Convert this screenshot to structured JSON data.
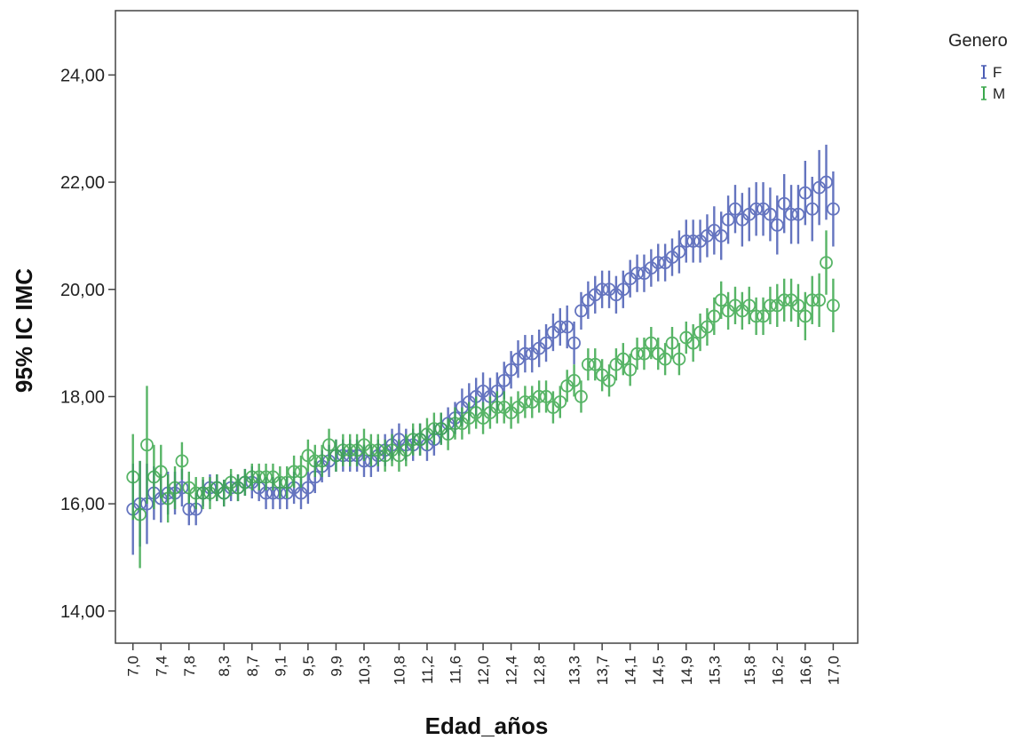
{
  "chart_data": {
    "type": "scatter",
    "subtype": "error-bar",
    "title": "",
    "xlabel": "Edad_años",
    "ylabel": "95% IC IMC",
    "ylim": [
      13.4,
      25.2
    ],
    "yticks": [
      "14,00",
      "16,00",
      "18,00",
      "20,00",
      "22,00",
      "24,00"
    ],
    "ytick_values": [
      14,
      16,
      18,
      20,
      22,
      24
    ],
    "xlim": [
      6.75,
      17.35
    ],
    "xticks": [
      "7,0",
      "7,4",
      "7,8",
      "8,3",
      "8,7",
      "9,1",
      "9,5",
      "9,9",
      "10,3",
      "10,8",
      "11,2",
      "11,6",
      "12,0",
      "12,4",
      "12,8",
      "13,3",
      "13,7",
      "14,1",
      "14,5",
      "14,9",
      "15,3",
      "15,8",
      "16,2",
      "16,6",
      "17,0"
    ],
    "xtick_values": [
      7.0,
      7.4,
      7.8,
      8.3,
      8.7,
      9.1,
      9.5,
      9.9,
      10.3,
      10.8,
      11.2,
      11.6,
      12.0,
      12.4,
      12.8,
      13.3,
      13.7,
      14.1,
      14.5,
      14.9,
      15.3,
      15.8,
      16.2,
      16.6,
      17.0
    ],
    "legend": {
      "title": "Genero",
      "position": "top-right outside"
    },
    "grid": false,
    "series": [
      {
        "name": "F",
        "color": "#4a5cb4",
        "x": [
          7.0,
          7.1,
          7.2,
          7.3,
          7.4,
          7.5,
          7.6,
          7.7,
          7.8,
          7.9,
          8.0,
          8.1,
          8.2,
          8.3,
          8.4,
          8.5,
          8.6,
          8.7,
          8.8,
          8.9,
          9.0,
          9.1,
          9.2,
          9.3,
          9.4,
          9.5,
          9.6,
          9.7,
          9.8,
          9.9,
          10.0,
          10.1,
          10.2,
          10.3,
          10.4,
          10.5,
          10.6,
          10.7,
          10.8,
          10.9,
          11.0,
          11.1,
          11.2,
          11.3,
          11.4,
          11.5,
          11.6,
          11.7,
          11.8,
          11.9,
          12.0,
          12.1,
          12.2,
          12.3,
          12.4,
          12.5,
          12.6,
          12.7,
          12.8,
          12.9,
          13.0,
          13.1,
          13.2,
          13.3,
          13.4,
          13.5,
          13.6,
          13.7,
          13.8,
          13.9,
          14.0,
          14.1,
          14.2,
          14.3,
          14.4,
          14.5,
          14.6,
          14.7,
          14.8,
          14.9,
          15.0,
          15.1,
          15.2,
          15.3,
          15.4,
          15.5,
          15.6,
          15.7,
          15.8,
          15.9,
          16.0,
          16.1,
          16.2,
          16.3,
          16.4,
          16.5,
          16.6,
          16.7,
          16.8,
          16.9,
          17.0
        ],
        "y": [
          15.9,
          16.0,
          16.0,
          16.2,
          16.1,
          16.2,
          16.2,
          16.3,
          15.9,
          15.9,
          16.2,
          16.3,
          16.3,
          16.2,
          16.3,
          16.3,
          16.4,
          16.4,
          16.3,
          16.2,
          16.2,
          16.2,
          16.2,
          16.3,
          16.2,
          16.3,
          16.5,
          16.7,
          16.8,
          16.9,
          16.9,
          16.9,
          16.9,
          16.8,
          16.8,
          16.9,
          17.0,
          17.1,
          17.2,
          17.1,
          17.1,
          17.2,
          17.1,
          17.2,
          17.4,
          17.5,
          17.6,
          17.8,
          17.9,
          18.0,
          18.1,
          18.0,
          18.1,
          18.3,
          18.5,
          18.7,
          18.8,
          18.8,
          18.9,
          19.0,
          19.2,
          19.3,
          19.3,
          19.0,
          19.6,
          19.8,
          19.9,
          20.0,
          20.0,
          19.9,
          20.0,
          20.2,
          20.3,
          20.3,
          20.4,
          20.5,
          20.5,
          20.6,
          20.7,
          20.9,
          20.9,
          20.9,
          21.0,
          21.1,
          21.0,
          21.3,
          21.5,
          21.3,
          21.4,
          21.5,
          21.5,
          21.4,
          21.2,
          21.6,
          21.4,
          21.4,
          21.8,
          21.5,
          21.9,
          22.0,
          21.5
        ],
        "ci": [
          0.85,
          0.8,
          0.75,
          0.5,
          0.45,
          0.4,
          0.4,
          0.35,
          0.3,
          0.3,
          0.25,
          0.25,
          0.25,
          0.25,
          0.25,
          0.25,
          0.25,
          0.3,
          0.25,
          0.3,
          0.3,
          0.3,
          0.3,
          0.3,
          0.3,
          0.3,
          0.3,
          0.3,
          0.3,
          0.3,
          0.3,
          0.3,
          0.3,
          0.3,
          0.3,
          0.3,
          0.3,
          0.3,
          0.3,
          0.3,
          0.3,
          0.3,
          0.3,
          0.3,
          0.3,
          0.3,
          0.3,
          0.35,
          0.35,
          0.35,
          0.35,
          0.35,
          0.35,
          0.35,
          0.35,
          0.35,
          0.35,
          0.35,
          0.35,
          0.35,
          0.35,
          0.35,
          0.4,
          0.4,
          0.35,
          0.35,
          0.35,
          0.35,
          0.35,
          0.35,
          0.35,
          0.35,
          0.35,
          0.35,
          0.35,
          0.35,
          0.35,
          0.35,
          0.4,
          0.4,
          0.4,
          0.4,
          0.4,
          0.45,
          0.45,
          0.45,
          0.45,
          0.5,
          0.5,
          0.5,
          0.5,
          0.5,
          0.55,
          0.55,
          0.55,
          0.55,
          0.6,
          0.6,
          0.7,
          0.7,
          0.7
        ]
      },
      {
        "name": "M",
        "color": "#3aa84c",
        "x": [
          7.0,
          7.1,
          7.2,
          7.3,
          7.4,
          7.5,
          7.6,
          7.7,
          7.8,
          7.9,
          8.0,
          8.1,
          8.2,
          8.3,
          8.4,
          8.5,
          8.6,
          8.7,
          8.8,
          8.9,
          9.0,
          9.1,
          9.2,
          9.3,
          9.4,
          9.5,
          9.6,
          9.7,
          9.8,
          9.9,
          10.0,
          10.1,
          10.2,
          10.3,
          10.4,
          10.5,
          10.6,
          10.7,
          10.8,
          10.9,
          11.0,
          11.1,
          11.2,
          11.3,
          11.4,
          11.5,
          11.6,
          11.7,
          11.8,
          11.9,
          12.0,
          12.1,
          12.2,
          12.3,
          12.4,
          12.5,
          12.6,
          12.7,
          12.8,
          12.9,
          13.0,
          13.1,
          13.2,
          13.3,
          13.4,
          13.5,
          13.6,
          13.7,
          13.8,
          13.9,
          14.0,
          14.1,
          14.2,
          14.3,
          14.4,
          14.5,
          14.6,
          14.7,
          14.8,
          14.9,
          15.0,
          15.1,
          15.2,
          15.3,
          15.4,
          15.5,
          15.6,
          15.7,
          15.8,
          15.9,
          16.0,
          16.1,
          16.2,
          16.3,
          16.4,
          16.5,
          16.6,
          16.7,
          16.8,
          16.9,
          17.0
        ],
        "y": [
          16.5,
          15.8,
          17.1,
          16.5,
          16.6,
          16.1,
          16.3,
          16.8,
          16.3,
          16.2,
          16.2,
          16.2,
          16.3,
          16.2,
          16.4,
          16.3,
          16.4,
          16.5,
          16.5,
          16.5,
          16.5,
          16.4,
          16.4,
          16.6,
          16.6,
          16.9,
          16.8,
          16.8,
          17.1,
          16.9,
          17.0,
          17.0,
          17.0,
          17.1,
          17.0,
          17.0,
          16.9,
          17.0,
          16.9,
          17.0,
          17.2,
          17.2,
          17.3,
          17.4,
          17.4,
          17.3,
          17.5,
          17.5,
          17.6,
          17.7,
          17.6,
          17.7,
          17.8,
          17.8,
          17.7,
          17.8,
          17.9,
          17.9,
          18.0,
          18.0,
          17.8,
          17.9,
          18.2,
          18.3,
          18.0,
          18.6,
          18.6,
          18.4,
          18.3,
          18.6,
          18.7,
          18.5,
          18.8,
          18.8,
          19.0,
          18.8,
          18.7,
          19.0,
          18.7,
          19.1,
          19.0,
          19.2,
          19.3,
          19.5,
          19.8,
          19.6,
          19.7,
          19.6,
          19.7,
          19.5,
          19.5,
          19.7,
          19.7,
          19.8,
          19.8,
          19.7,
          19.5,
          19.8,
          19.8,
          20.5,
          19.7
        ],
        "ci": [
          0.8,
          1.0,
          1.1,
          0.6,
          0.5,
          0.45,
          0.4,
          0.35,
          0.3,
          0.3,
          0.3,
          0.3,
          0.25,
          0.25,
          0.25,
          0.25,
          0.25,
          0.25,
          0.25,
          0.25,
          0.25,
          0.3,
          0.3,
          0.3,
          0.3,
          0.3,
          0.3,
          0.3,
          0.3,
          0.3,
          0.3,
          0.3,
          0.3,
          0.3,
          0.3,
          0.3,
          0.3,
          0.3,
          0.3,
          0.3,
          0.3,
          0.3,
          0.3,
          0.3,
          0.3,
          0.3,
          0.3,
          0.3,
          0.3,
          0.3,
          0.3,
          0.3,
          0.3,
          0.3,
          0.3,
          0.3,
          0.3,
          0.3,
          0.3,
          0.3,
          0.3,
          0.3,
          0.3,
          0.3,
          0.3,
          0.3,
          0.3,
          0.3,
          0.3,
          0.3,
          0.3,
          0.3,
          0.3,
          0.3,
          0.3,
          0.3,
          0.3,
          0.3,
          0.3,
          0.3,
          0.35,
          0.35,
          0.35,
          0.35,
          0.35,
          0.35,
          0.35,
          0.35,
          0.35,
          0.35,
          0.35,
          0.35,
          0.4,
          0.4,
          0.4,
          0.4,
          0.45,
          0.45,
          0.5,
          0.6,
          0.5
        ]
      }
    ]
  }
}
